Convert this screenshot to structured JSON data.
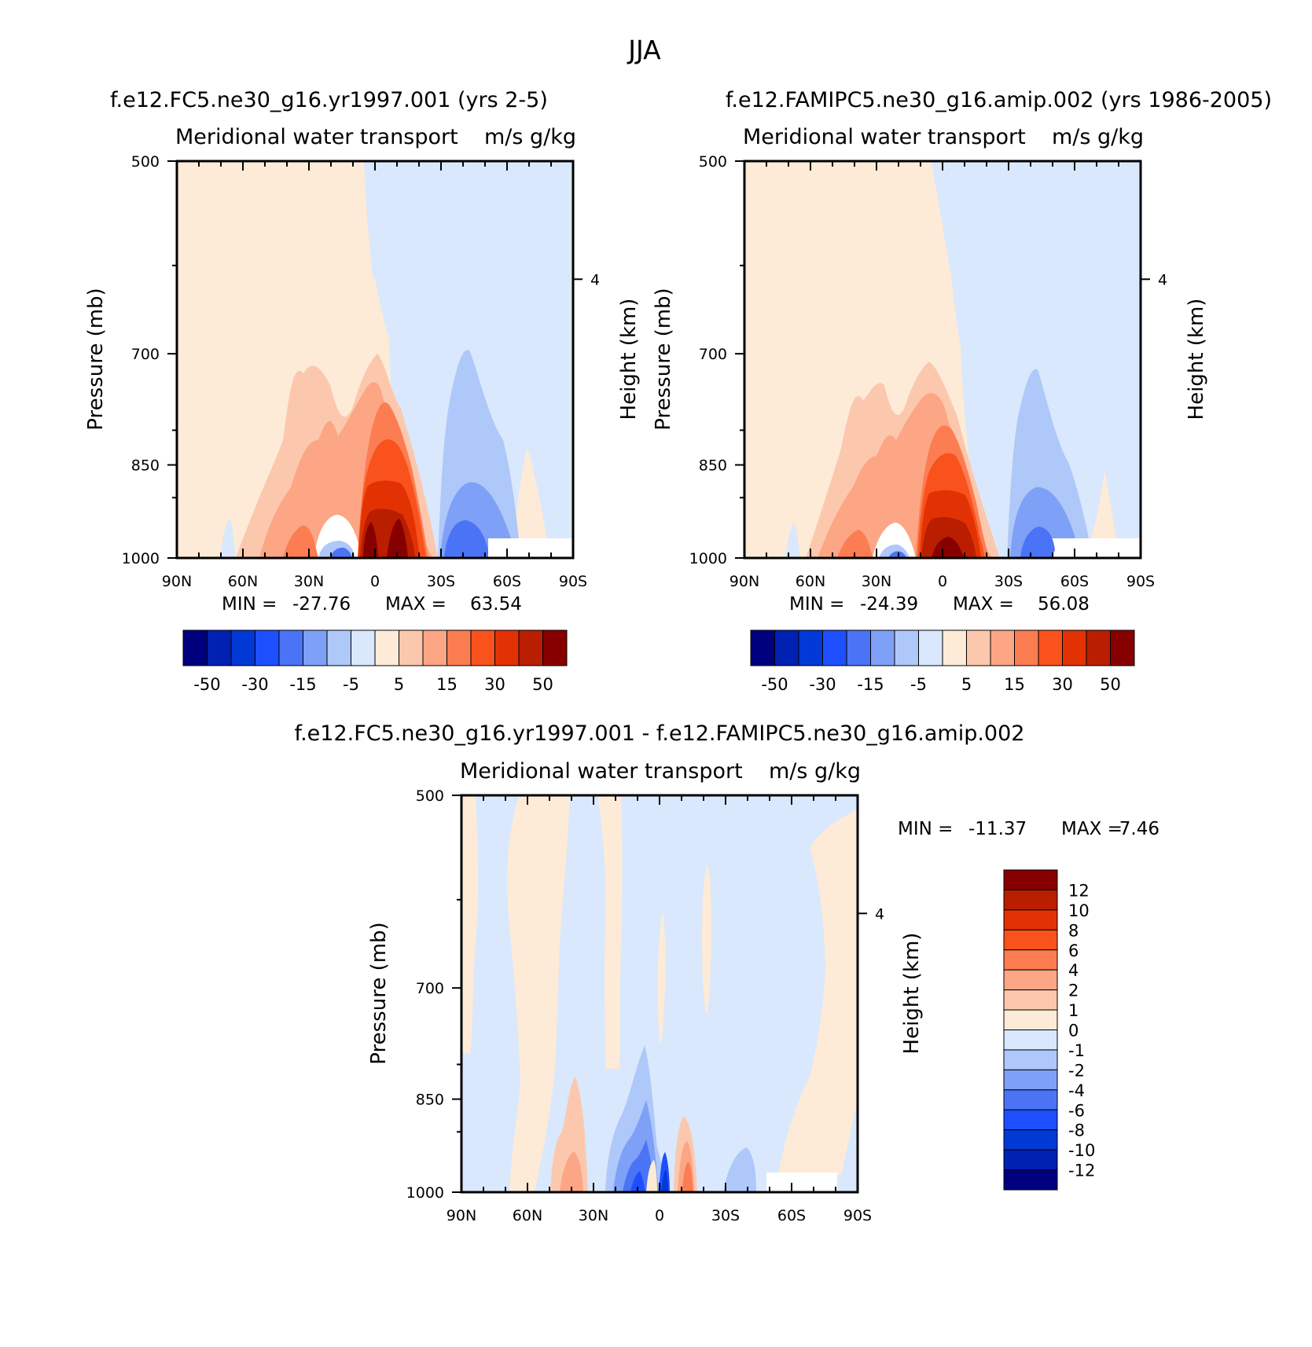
{
  "figure": {
    "title": "JJA"
  },
  "colors": {
    "top_levels": [
      "#00007f",
      "#0021b2",
      "#0039d5",
      "#1e4fff",
      "#4a74f5",
      "#7fa0f7",
      "#afc8fa",
      "#d9e8fc",
      "#fdebd8",
      "#fcc8ad",
      "#fca686",
      "#fc7d51",
      "#f9521d",
      "#e23203",
      "#ba1e00",
      "#870000"
    ],
    "diff_levels": [
      "#00007f",
      "#0021b2",
      "#0039d5",
      "#1e4fff",
      "#4a74f5",
      "#7fa0f7",
      "#afc8fa",
      "#d9e8fc",
      "#fdebd8",
      "#fcc8ad",
      "#fca686",
      "#fc7d51",
      "#f9521d",
      "#e23203",
      "#ba1e00",
      "#870000"
    ]
  },
  "chart_data": [
    {
      "type": "heatmap",
      "title": "f.e12.FC5.ne30_g16.yr1997.001 (yrs 2-5)",
      "subtitle_left": "Meridional water transport",
      "subtitle_right": "m/s g/kg",
      "ylabel": "Pressure (mb)",
      "ylabel_right": "Height (km)",
      "x_ticks": [
        "90N",
        "60N",
        "30N",
        "0",
        "30S",
        "60S",
        "90S"
      ],
      "x_values": [
        90,
        60,
        30,
        0,
        -30,
        -60,
        -90
      ],
      "y_ticks": [
        "500",
        "700",
        "850",
        "1000"
      ],
      "y_values": [
        500,
        700,
        850,
        1000
      ],
      "ylim": [
        500,
        1000
      ],
      "right_ticks": [
        "4"
      ],
      "stats": {
        "min_label": "MIN = ",
        "min": "-27.76",
        "max_label": "MAX = ",
        "max": "63.54"
      },
      "colorbar": {
        "orientation": "horizontal",
        "labels": [
          "-50",
          "-30",
          "-15",
          "-5",
          "5",
          "15",
          "30",
          "50"
        ]
      }
    },
    {
      "type": "heatmap",
      "title": "f.e12.FAMIPC5.ne30_g16.amip.002 (yrs 1986-2005)",
      "subtitle_left": "Meridional water transport",
      "subtitle_right": "m/s g/kg",
      "ylabel": "Pressure (mb)",
      "ylabel_right": "Height (km)",
      "x_ticks": [
        "90N",
        "60N",
        "30N",
        "0",
        "30S",
        "60S",
        "90S"
      ],
      "x_values": [
        90,
        60,
        30,
        0,
        -30,
        -60,
        -90
      ],
      "y_ticks": [
        "500",
        "700",
        "850",
        "1000"
      ],
      "y_values": [
        500,
        700,
        850,
        1000
      ],
      "ylim": [
        500,
        1000
      ],
      "right_ticks": [
        "4"
      ],
      "stats": {
        "min_label": "MIN = ",
        "min": "-24.39",
        "max_label": "MAX = ",
        "max": "56.08"
      },
      "colorbar": {
        "orientation": "horizontal",
        "labels": [
          "-50",
          "-30",
          "-15",
          "-5",
          "5",
          "15",
          "30",
          "50"
        ]
      }
    },
    {
      "type": "heatmap",
      "title": "f.e12.FC5.ne30_g16.yr1997.001 - f.e12.FAMIPC5.ne30_g16.amip.002",
      "subtitle_left": "Meridional water transport",
      "subtitle_right": "m/s g/kg",
      "ylabel": "Pressure (mb)",
      "ylabel_right": "Height (km)",
      "x_ticks": [
        "90N",
        "60N",
        "30N",
        "0",
        "30S",
        "60S",
        "90S"
      ],
      "x_values": [
        90,
        60,
        30,
        0,
        -30,
        -60,
        -90
      ],
      "y_ticks": [
        "500",
        "700",
        "850",
        "1000"
      ],
      "y_values": [
        500,
        700,
        850,
        1000
      ],
      "ylim": [
        500,
        1000
      ],
      "right_ticks": [
        "4"
      ],
      "stats": {
        "min_label": "MIN = ",
        "min": "-11.37",
        "max_label": "MAX = ",
        "max": "7.46"
      },
      "colorbar": {
        "orientation": "vertical",
        "labels": [
          "12",
          "10",
          "8",
          "6",
          "4",
          "2",
          "1",
          "0",
          "-1",
          "-2",
          "-4",
          "-6",
          "-8",
          "-10",
          "-12"
        ]
      }
    }
  ]
}
